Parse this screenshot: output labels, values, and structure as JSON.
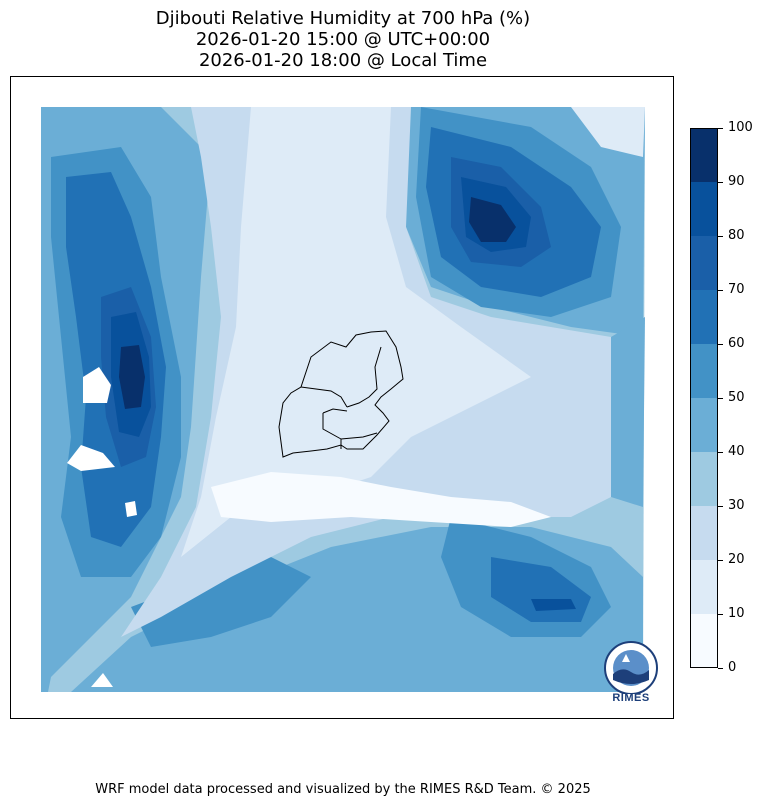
{
  "title": {
    "line1": "Djibouti Relative Humidity at 700 hPa (%)",
    "line2": "2026-01-20 15:00 @ UTC+00:00",
    "line3": "2026-01-20 18:00 @ Local Time"
  },
  "colorbar": {
    "ticks": [
      "0",
      "10",
      "20",
      "30",
      "40",
      "50",
      "60",
      "70",
      "80",
      "90",
      "100"
    ],
    "colors": [
      "#f7fbff",
      "#deebf7",
      "#c6dbef",
      "#9ecae1",
      "#6baed6",
      "#4292c6",
      "#2171b5",
      "#1a5fa8",
      "#08519c",
      "#08306b"
    ]
  },
  "logo": {
    "text": "RIMES"
  },
  "footer": "WRF model data processed and visualized by the RIMES R&D Team. © 2025"
}
